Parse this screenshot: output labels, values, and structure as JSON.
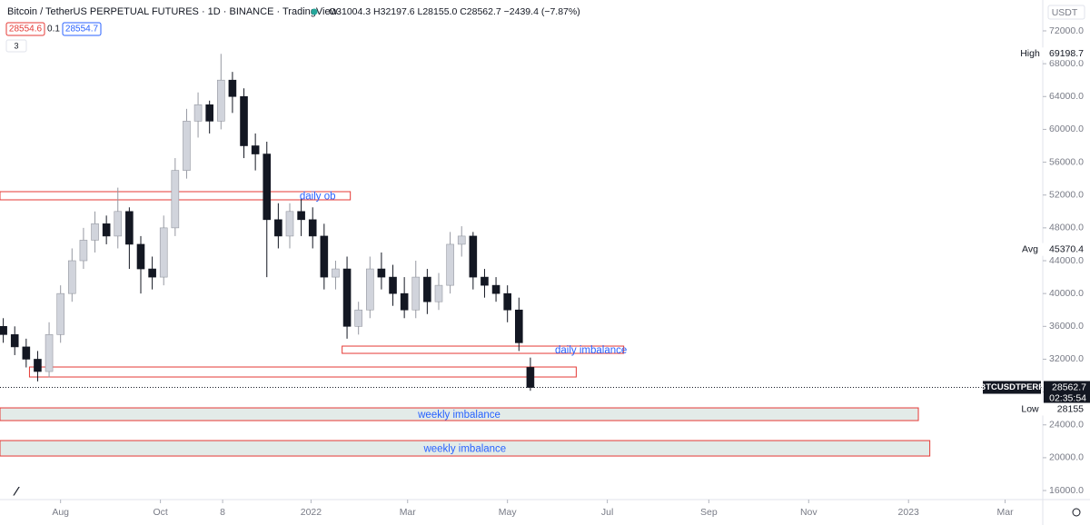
{
  "chart_data": {
    "type": "candlestick",
    "title": "Bitcoin / TetherUS PERPETUAL FUTURES · 1D · BINANCE · TradingView",
    "ohlc_summary": "O31004.3 H32197.6 L28155.0 C28562.7 −2439.4 (−7.87%)",
    "order_boxes": [
      "28554.6",
      "0.1",
      "28554.7"
    ],
    "indicator_count": "3",
    "currency": "USDT",
    "x": [
      -35,
      -28,
      -21,
      -14,
      -7,
      0,
      7,
      14,
      21,
      28,
      35,
      42,
      49,
      56,
      63,
      70,
      77,
      84,
      91,
      98,
      105,
      112,
      119,
      126,
      133,
      140,
      147,
      154,
      161,
      168,
      175,
      182,
      189,
      196,
      203,
      210,
      217,
      224,
      231,
      238,
      245,
      252,
      259,
      266,
      273,
      280,
      287
    ],
    "open": [
      36000,
      35000,
      33500,
      32000,
      30500,
      35000,
      40000,
      44000,
      46500,
      48500,
      47000,
      50000,
      46000,
      43000,
      42000,
      48000,
      55000,
      61000,
      63000,
      61000,
      66000,
      64000,
      58000,
      57000,
      49000,
      47000,
      50000,
      49000,
      47000,
      42000,
      43000,
      36000,
      38000,
      43000,
      42000,
      40000,
      38000,
      42000,
      39000,
      41000,
      46000,
      47000,
      42000,
      41000,
      40000,
      38000,
      31004.3
    ],
    "high": [
      37000,
      36000,
      34500,
      33000,
      36500,
      41000,
      45500,
      48000,
      50000,
      49500,
      52900,
      50500,
      47000,
      44500,
      49500,
      56500,
      62500,
      64500,
      63500,
      69198.7,
      67000,
      65000,
      59500,
      58500,
      51000,
      51000,
      51500,
      50500,
      48500,
      44000,
      44500,
      39000,
      44500,
      45000,
      43500,
      42000,
      44000,
      43000,
      42500,
      47500,
      48200,
      47500,
      43000,
      42000,
      41000,
      39500,
      32197.6
    ],
    "low": [
      34000,
      32500,
      31000,
      29300,
      29800,
      34000,
      39000,
      43000,
      45000,
      46000,
      45500,
      43000,
      40000,
      40500,
      41000,
      47000,
      54000,
      59000,
      59500,
      60000,
      62000,
      56500,
      55000,
      42000,
      45500,
      45500,
      47000,
      45500,
      40500,
      40500,
      34500,
      35000,
      37000,
      40500,
      38500,
      37000,
      37000,
      37500,
      38000,
      40000,
      44500,
      40500,
      39500,
      39000,
      36500,
      33000,
      28155.0
    ],
    "close": [
      35000,
      33500,
      32000,
      30500,
      35000,
      40000,
      44000,
      46500,
      48500,
      47000,
      50000,
      46000,
      43000,
      42000,
      48000,
      55000,
      61000,
      63000,
      61000,
      66000,
      64000,
      58000,
      57000,
      49000,
      47000,
      50000,
      49000,
      47000,
      42000,
      43000,
      36000,
      38000,
      43000,
      42000,
      40000,
      38000,
      42000,
      39000,
      41000,
      46000,
      47000,
      42000,
      41000,
      40000,
      38000,
      34000,
      28562.7
    ],
    "up_color": "#d1d4dc",
    "down_color": "#131722",
    "xlim": [
      -37,
      600
    ],
    "xticks": [
      {
        "value": 0,
        "label": "Aug"
      },
      {
        "value": 61,
        "label": "Oct"
      },
      {
        "value": 99,
        "label": "8"
      },
      {
        "value": 153,
        "label": "2022"
      },
      {
        "value": 212,
        "label": "Mar"
      },
      {
        "value": 273,
        "label": "May"
      },
      {
        "value": 334,
        "label": "Jul"
      },
      {
        "value": 396,
        "label": "Sep"
      },
      {
        "value": 457,
        "label": "Nov"
      },
      {
        "value": 518,
        "label": "2023"
      },
      {
        "value": 577,
        "label": "Mar"
      }
    ],
    "ylim": [
      14900,
      75760
    ],
    "yticks": [
      {
        "value": 16000,
        "label": "16000.0"
      },
      {
        "value": 20000,
        "label": "20000.0"
      },
      {
        "value": 24000,
        "label": "24000.0"
      },
      {
        "value": 28000,
        "label": "28000.0"
      },
      {
        "value": 32000,
        "label": "32000.0"
      },
      {
        "value": 36000,
        "label": "36000.0"
      },
      {
        "value": 40000,
        "label": "40000.0"
      },
      {
        "value": 44000,
        "label": "44000.0"
      },
      {
        "value": 48000,
        "label": "48000.0"
      },
      {
        "value": 52000,
        "label": "52000.0"
      },
      {
        "value": 56000,
        "label": "56000.0"
      },
      {
        "value": 60000,
        "label": "60000.0"
      },
      {
        "value": 64000,
        "label": "64000.0"
      },
      {
        "value": 68000,
        "label": "68000.0"
      },
      {
        "value": 72000,
        "label": "72000.0"
      }
    ],
    "zones": [
      {
        "label": "daily ob",
        "x": [
          -37,
          177
        ],
        "y": [
          51416,
          52412
        ],
        "fill": "none"
      },
      {
        "label": "daily imbalance",
        "x": [
          172,
          344
        ],
        "y": [
          32712,
          33597
        ],
        "fill": "none"
      },
      {
        "x": [
          -19,
          315
        ],
        "y": [
          29835,
          31052
        ],
        "fill": "none"
      },
      {
        "label": "weekly imbalance",
        "x": [
          -37,
          524
        ],
        "y": [
          24523,
          26072
        ],
        "fill": "#e3ebe8"
      },
      {
        "label": "weekly imbalance",
        "x": [
          -37,
          531
        ],
        "y": [
          20206,
          22088
        ],
        "fill": "#e3ebe8"
      }
    ],
    "zone_color": "#e53935",
    "zone_text_color": "#2962ff",
    "markers": [
      {
        "label": "High",
        "value": 69198.7
      },
      {
        "label": "Avg",
        "value": 45370.4
      },
      {
        "label": "Low",
        "value": 28155.0
      }
    ],
    "last": {
      "symbol": "BTCUSDTPERP",
      "value": 28562.7,
      "countdown": "02:35:54"
    }
  }
}
